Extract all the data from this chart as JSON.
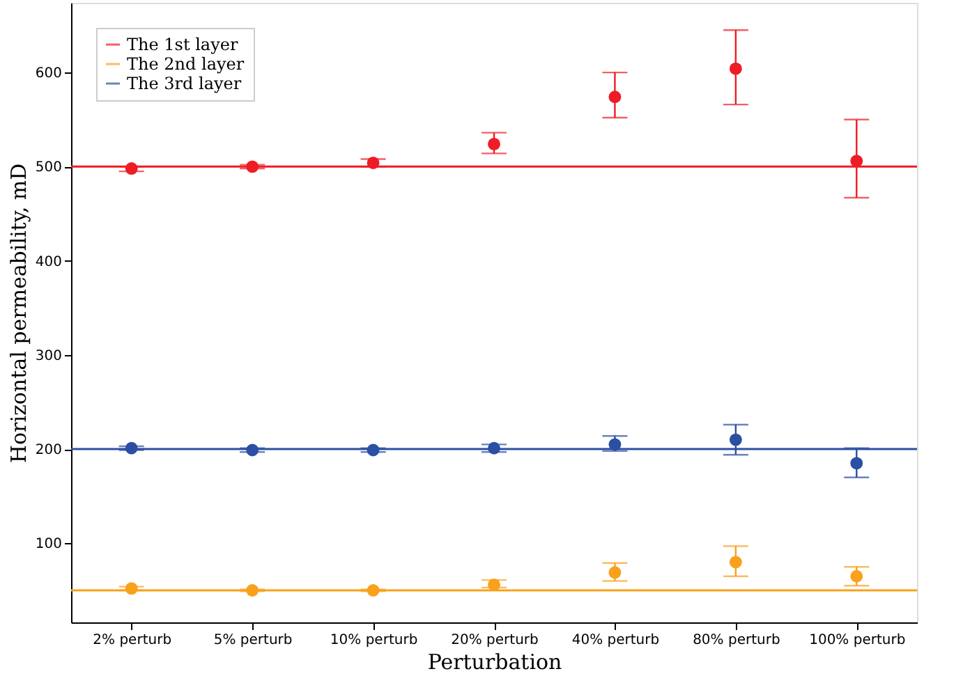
{
  "chart_data": {
    "type": "scatter",
    "xlabel": "Perturbation",
    "ylabel": "Horizontal permeability, mD",
    "categories": [
      "2% perturb",
      "5% perturb",
      "10% perturb",
      "20% perturb",
      "40% perturb",
      "80% perturb",
      "100% perturb"
    ],
    "series": [
      {
        "name": "The 1st layer",
        "color": "#ee1c25",
        "values": [
          498,
          500,
          504,
          524,
          574,
          604,
          506
        ],
        "errors": [
          [
            495,
            500
          ],
          [
            498,
            502
          ],
          [
            500,
            508
          ],
          [
            514,
            536
          ],
          [
            552,
            600
          ],
          [
            566,
            645
          ],
          [
            467,
            550
          ]
        ]
      },
      {
        "name": "The 2nd layer",
        "color": "#f9a11b",
        "values": [
          52,
          50,
          50,
          56,
          69,
          80,
          65
        ],
        "errors": [
          [
            50,
            54
          ],
          [
            49,
            51
          ],
          [
            49,
            51
          ],
          [
            53,
            61
          ],
          [
            60,
            79
          ],
          [
            65,
            97
          ],
          [
            55,
            75
          ]
        ]
      },
      {
        "name": "The 3rd layer",
        "color": "#2b4fa2",
        "values": [
          201,
          199,
          199,
          201,
          205,
          210,
          185
        ],
        "errors": [
          [
            199,
            203
          ],
          [
            197,
            201
          ],
          [
            197,
            201
          ],
          [
            197,
            205
          ],
          [
            198,
            214
          ],
          [
            194,
            226
          ],
          [
            170,
            201
          ]
        ]
      }
    ],
    "ref_lines": [
      {
        "axis": "y",
        "value": 500,
        "color": "#ee1c25"
      },
      {
        "axis": "y",
        "value": 50,
        "color": "#f9a11b"
      },
      {
        "axis": "y",
        "value": 200,
        "color": "#2b4fa2"
      }
    ],
    "ylim": [
      16,
      674
    ],
    "yticks": [
      100,
      200,
      300,
      400,
      500,
      600
    ],
    "marker": "circle",
    "grid": false,
    "legend": "top left"
  }
}
